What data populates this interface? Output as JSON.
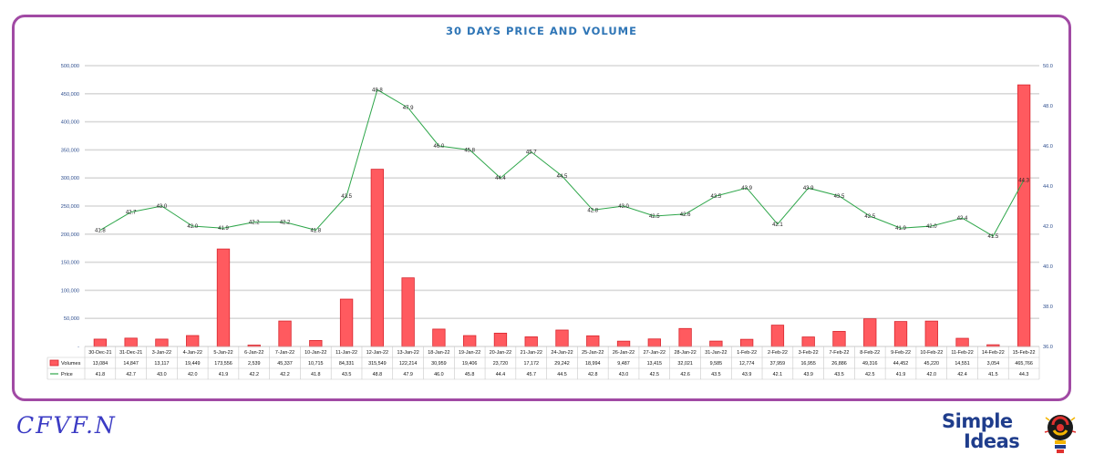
{
  "chart_data": {
    "type": "bar+line",
    "title": "30 DAYS PRICE AND VOLUME",
    "categories": [
      "30-Dec-21",
      "31-Dec-21",
      "3-Jan-22",
      "4-Jan-22",
      "5-Jan-22",
      "6-Jan-22",
      "7-Jan-22",
      "10-Jan-22",
      "11-Jan-22",
      "12-Jan-22",
      "13-Jan-22",
      "18-Jan-22",
      "19-Jan-22",
      "20-Jan-22",
      "21-Jan-22",
      "24-Jan-22",
      "25-Jan-22",
      "26-Jan-22",
      "27-Jan-22",
      "28-Jan-22",
      "31-Jan-22",
      "1-Feb-22",
      "2-Feb-22",
      "3-Feb-22",
      "7-Feb-22",
      "8-Feb-22",
      "9-Feb-22",
      "10-Feb-22",
      "11-Feb-22",
      "14-Feb-22",
      "15-Feb-22"
    ],
    "series": [
      {
        "name": "Volumes",
        "axis": "left",
        "kind": "bar",
        "color": "#ff5a5f",
        "values": [
          13084,
          14847,
          13117,
          19449,
          173556,
          2539,
          45337,
          10715,
          84331,
          315549,
          122214,
          30959,
          19406,
          23720,
          17172,
          29242,
          18994,
          9487,
          13415,
          32021,
          9585,
          12774,
          37959,
          16955,
          26886,
          49316,
          44452,
          45220,
          14551,
          3054,
          465766
        ],
        "display": [
          "13,084",
          "14,847",
          "13,117",
          "19,449",
          "173,556",
          "2,539",
          "45,337",
          "10,715",
          "84,331",
          "315,549",
          "122,214",
          "30,959",
          "19,406",
          "23,720",
          "17,172",
          "29,242",
          "18,994",
          "9,487",
          "13,415",
          "32,021",
          "9,585",
          "12,774",
          "37,959",
          "16,955",
          "26,886",
          "49,316",
          "44,452",
          "45,220",
          "14,551",
          "3,054",
          "465,766"
        ]
      },
      {
        "name": "Price",
        "axis": "right",
        "kind": "line",
        "color": "#2ea64a",
        "values": [
          41.8,
          42.7,
          43.0,
          42.0,
          41.9,
          42.2,
          42.2,
          41.8,
          43.5,
          48.8,
          47.9,
          46.0,
          45.8,
          44.4,
          45.7,
          44.5,
          42.8,
          43.0,
          42.5,
          42.6,
          43.5,
          43.9,
          42.1,
          43.9,
          43.5,
          42.5,
          41.9,
          42.0,
          42.4,
          41.5,
          44.3
        ],
        "display": [
          "41.8",
          "42.7",
          "43.0",
          "42.0",
          "41.9",
          "42.2",
          "42.2",
          "41.8",
          "43.5",
          "48.8",
          "47.9",
          "46.0",
          "45.8",
          "44.4",
          "45.7",
          "44.5",
          "42.8",
          "43.0",
          "42.5",
          "42.6",
          "43.5",
          "43.9",
          "42.1",
          "43.9",
          "43.5",
          "42.5",
          "41.9",
          "42.0",
          "42.4",
          "41.5",
          "44.3"
        ]
      }
    ],
    "y_left": {
      "min": 0,
      "max": 500000,
      "ticks": [
        0,
        50000,
        100000,
        150000,
        200000,
        250000,
        300000,
        350000,
        400000,
        450000,
        500000
      ],
      "tick_labels": [
        "-",
        "50,000",
        "100,000",
        "150,000",
        "200,000",
        "250,000",
        "300,000",
        "350,000",
        "400,000",
        "450,000",
        "500,000"
      ]
    },
    "y_right": {
      "min": 36,
      "max": 50,
      "ticks": [
        36,
        38,
        40,
        42,
        44,
        46,
        48,
        50
      ],
      "tick_labels": [
        "36.0",
        "38.0",
        "40.0",
        "42.0",
        "44.0",
        "46.0",
        "48.0",
        "50.0"
      ]
    },
    "grid": true,
    "data_table": true,
    "legend": "data-table-left",
    "frame_color": "#a14aa4"
  },
  "branding": {
    "left_text": "CFVF.N",
    "right_line1": "Simple",
    "right_line2": "Ideas",
    "bulb_colors": [
      "#e0312f",
      "#f4b400",
      "#1f3d8c"
    ]
  }
}
